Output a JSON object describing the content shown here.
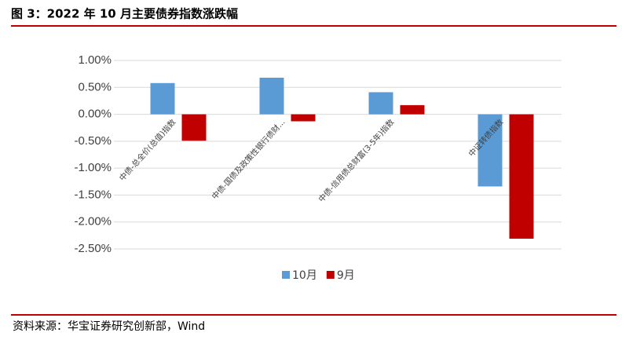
{
  "title": "图 3：2022 年 10 月主要债券指数涨跌幅",
  "source": "资料来源：华宝证券研究创新部，Wind",
  "chart_data": {
    "type": "bar",
    "categories": [
      "中债-总全价(总值)指数",
      "中债-国债及政策性银行债财...",
      "中债-信用债总财富(3-5年)指数",
      "中证转债指数"
    ],
    "series": [
      {
        "name": "10月",
        "color": "#5b9bd5",
        "values": [
          0.58,
          0.68,
          0.41,
          -1.34
        ]
      },
      {
        "name": "9月",
        "color": "#c00000",
        "values": [
          -0.49,
          -0.13,
          0.17,
          -2.31
        ]
      }
    ],
    "ylim": [
      -2.5,
      1
    ],
    "yticks": [
      {
        "value": 1,
        "label": "1.00%"
      },
      {
        "value": 0.5,
        "label": "0.50%"
      },
      {
        "value": 0,
        "label": "0.00%"
      },
      {
        "value": -0.5,
        "label": "-0.50%"
      },
      {
        "value": -1,
        "label": "-1.00%"
      },
      {
        "value": -1.5,
        "label": "-1.50%"
      },
      {
        "value": -2,
        "label": "-2.00%"
      },
      {
        "value": -2.5,
        "label": "-2.50%"
      }
    ],
    "grid": true
  }
}
